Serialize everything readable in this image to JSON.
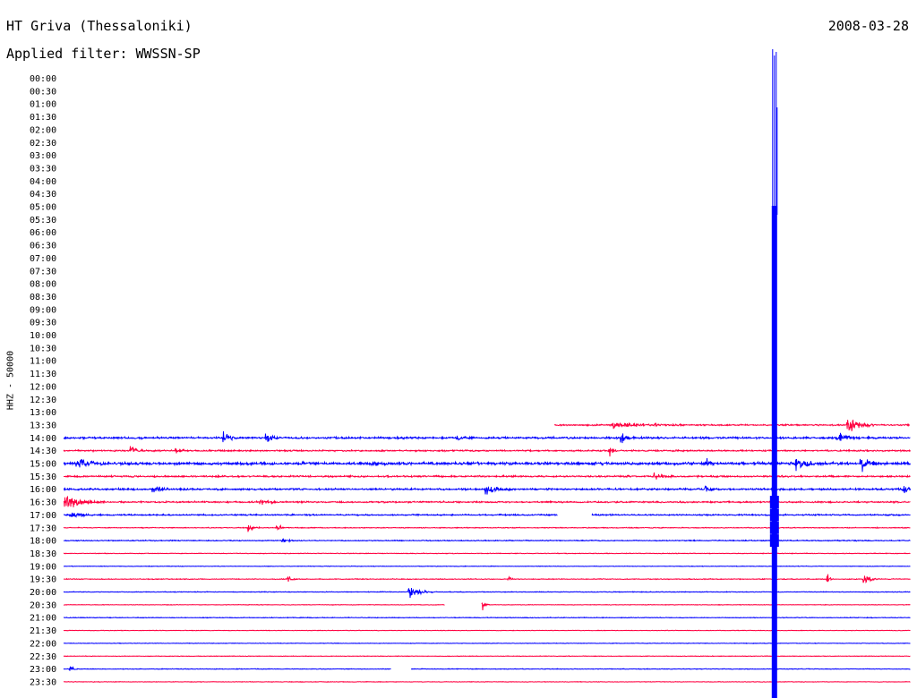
{
  "header": {
    "station": "HT Griva (Thessaloniki)",
    "date": "2008-03-28",
    "filter": "Applied filter: WWSSN-SP"
  },
  "channel_label": "HHZ - 50000",
  "colors": {
    "trace_a": "#0000ff",
    "trace_b": "#ff0040",
    "text": "#000000"
  },
  "chart_data": {
    "type": "line",
    "title": "HT Griva (Thessaloniki)",
    "subtitle": "Applied filter: WWSSN-SP",
    "ylabel": "HHZ - 50000",
    "row_labels": [
      "00:00",
      "00:30",
      "01:00",
      "01:30",
      "02:00",
      "02:30",
      "03:00",
      "03:30",
      "04:00",
      "04:30",
      "05:00",
      "05:30",
      "06:00",
      "06:30",
      "07:00",
      "07:30",
      "08:00",
      "08:30",
      "09:00",
      "09:30",
      "10:00",
      "10:30",
      "11:00",
      "11:30",
      "12:00",
      "12:30",
      "13:00",
      "13:30",
      "14:00",
      "14:30",
      "15:00",
      "15:30",
      "16:00",
      "16:30",
      "17:00",
      "17:30",
      "18:00",
      "18:30",
      "19:00",
      "19:30",
      "20:00",
      "20:30",
      "21:00",
      "21:30",
      "22:00",
      "22:30",
      "23:00",
      "23:30"
    ],
    "x_range_minutes": [
      0,
      30
    ],
    "record_start": "13:30",
    "record_start_offset_min": 17.4,
    "noise_level": [
      0,
      0,
      0,
      0,
      0,
      0,
      0,
      0,
      0,
      0,
      0,
      0,
      0,
      0,
      0,
      0,
      0,
      0,
      0,
      0,
      0,
      0,
      0,
      0,
      0,
      0,
      0,
      1.0,
      1.4,
      1.1,
      2.0,
      1.2,
      1.3,
      1.1,
      1.0,
      0.6,
      0.7,
      0.5,
      0.4,
      0.6,
      0.5,
      0.4,
      0.5,
      0.4,
      0.4,
      0.4,
      0.5,
      0.4
    ],
    "gaps": [
      {
        "row": "17:00",
        "from_min": 17.5,
        "to_min": 18.7
      },
      {
        "row": "20:30",
        "from_min": 13.5,
        "to_min": 14.8
      },
      {
        "row": "23:00",
        "from_min": 11.6,
        "to_min": 12.3
      }
    ],
    "events": [
      {
        "row": "13:30",
        "min": 19.5,
        "amp": 5,
        "dur": 2.5
      },
      {
        "row": "13:30",
        "min": 27.8,
        "amp": 14,
        "dur": 1.0
      },
      {
        "row": "14:00",
        "min": 5.7,
        "amp": 9,
        "dur": 0.6
      },
      {
        "row": "14:00",
        "min": 7.2,
        "amp": 6,
        "dur": 0.5
      },
      {
        "row": "14:00",
        "min": 14.0,
        "amp": 4,
        "dur": 0.5
      },
      {
        "row": "14:00",
        "min": 19.8,
        "amp": 6,
        "dur": 0.5
      },
      {
        "row": "14:00",
        "min": 27.5,
        "amp": 7,
        "dur": 0.8
      },
      {
        "row": "14:30",
        "min": 2.4,
        "amp": 7,
        "dur": 0.5
      },
      {
        "row": "14:30",
        "min": 4.0,
        "amp": 5,
        "dur": 0.4
      },
      {
        "row": "14:30",
        "min": 19.4,
        "amp": 10,
        "dur": 0.2
      },
      {
        "row": "15:00",
        "min": 0.5,
        "amp": 8,
        "dur": 0.9
      },
      {
        "row": "15:00",
        "min": 11.0,
        "amp": 5,
        "dur": 0.5
      },
      {
        "row": "15:00",
        "min": 22.8,
        "amp": 8,
        "dur": 0.3
      },
      {
        "row": "15:00",
        "min": 26.0,
        "amp": 10,
        "dur": 0.8
      },
      {
        "row": "15:00",
        "min": 28.3,
        "amp": 9,
        "dur": 0.8
      },
      {
        "row": "15:30",
        "min": 21.0,
        "amp": 4,
        "dur": 0.8
      },
      {
        "row": "16:00",
        "min": 3.2,
        "amp": 5,
        "dur": 0.8
      },
      {
        "row": "16:00",
        "min": 15.0,
        "amp": 8,
        "dur": 0.9
      },
      {
        "row": "16:00",
        "min": 22.8,
        "amp": 5,
        "dur": 0.3
      },
      {
        "row": "16:00",
        "min": 29.8,
        "amp": 7,
        "dur": 0.3
      },
      {
        "row": "16:30",
        "min": 0.1,
        "amp": 13,
        "dur": 1.4
      },
      {
        "row": "16:30",
        "min": 7.0,
        "amp": 5,
        "dur": 0.8
      },
      {
        "row": "17:00",
        "min": 0.3,
        "amp": 6,
        "dur": 0.8
      },
      {
        "row": "17:30",
        "min": 6.6,
        "amp": 6,
        "dur": 0.4
      },
      {
        "row": "17:30",
        "min": 7.6,
        "amp": 5,
        "dur": 0.3
      },
      {
        "row": "18:00",
        "min": 7.8,
        "amp": 4,
        "dur": 0.5
      },
      {
        "row": "19:30",
        "min": 8.0,
        "amp": 9,
        "dur": 0.2
      },
      {
        "row": "19:30",
        "min": 15.8,
        "amp": 8,
        "dur": 0.2
      },
      {
        "row": "19:30",
        "min": 27.1,
        "amp": 8,
        "dur": 0.2
      },
      {
        "row": "19:30",
        "min": 28.4,
        "amp": 6,
        "dur": 0.5
      },
      {
        "row": "20:00",
        "min": 12.3,
        "amp": 10,
        "dur": 0.8
      },
      {
        "row": "20:30",
        "min": 14.9,
        "amp": 7,
        "dur": 0.2
      },
      {
        "row": "23:00",
        "min": 0.3,
        "amp": 4,
        "dur": 0.3
      }
    ],
    "large_event": {
      "start_row": "13:30",
      "end_row": "23:30",
      "min": 25.2,
      "peak_amp": 430
    },
    "grid": false
  }
}
